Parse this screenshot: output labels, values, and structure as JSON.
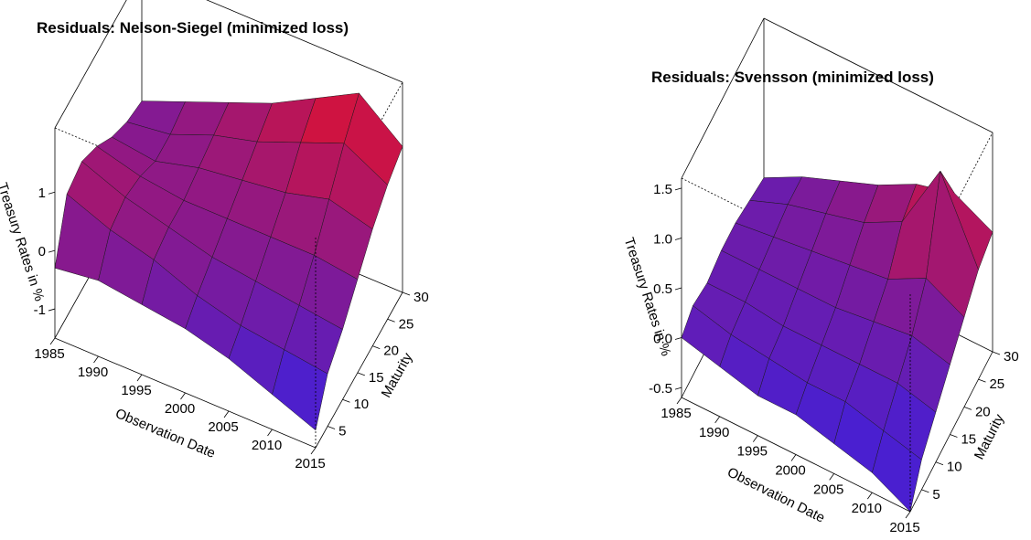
{
  "chart_data": [
    {
      "type": "surface",
      "title": "Residuals: Nelson-Siegel (minimized loss)",
      "xlabel": "Observation Date",
      "ylabel": "Maturity",
      "zlabel": "Treasury Rates in %",
      "x": [
        1985,
        1990,
        1995,
        2000,
        2005,
        2010,
        2015
      ],
      "y": [
        1,
        5,
        10,
        15,
        20,
        25,
        30
      ],
      "z": [
        [
          -0.3,
          0.6,
          0.7,
          0.5,
          0.2,
          0.0,
          -0.1
        ],
        [
          -0.2,
          0.3,
          0.4,
          0.3,
          0.1,
          0.1,
          0.2
        ],
        [
          -0.3,
          0.1,
          0.2,
          0.2,
          0.3,
          0.4,
          0.5
        ],
        [
          -0.4,
          -0.2,
          0.0,
          0.2,
          0.4,
          0.6,
          0.8
        ],
        [
          -0.6,
          -0.4,
          -0.1,
          0.2,
          0.5,
          0.9,
          1.2
        ],
        [
          -0.9,
          -0.5,
          -0.2,
          0.2,
          0.7,
          1.2,
          1.6
        ],
        [
          -1.2,
          -0.6,
          -0.3,
          0.1,
          0.5,
          0.8,
          1.0
        ]
      ],
      "xlim": [
        1985,
        2015
      ],
      "ylim": [
        1,
        30
      ],
      "zlim": [
        -1.5,
        2.1
      ],
      "xticks": [
        1985,
        1990,
        1995,
        2000,
        2005,
        2010,
        2015
      ],
      "yticks": [
        5,
        10,
        15,
        20,
        25,
        30
      ],
      "zticks": [
        -1,
        0,
        1
      ],
      "colors": [
        "#4a1fd0",
        "#ee1020"
      ]
    },
    {
      "type": "surface",
      "title": "Residuals: Svensson (minimized loss)",
      "xlabel": "Observation Date",
      "ylabel": "Maturity",
      "zlabel": "Treasury Rates in %",
      "x": [
        1985,
        1990,
        1995,
        2000,
        2005,
        2010,
        2015
      ],
      "y": [
        1,
        5,
        10,
        15,
        20,
        25,
        30
      ],
      "z": [
        [
          0.0,
          0.1,
          0.05,
          0.1,
          0.1,
          0.05,
          0.0
        ],
        [
          -0.1,
          0.0,
          0.05,
          0.1,
          0.15,
          0.2,
          0.2
        ],
        [
          -0.2,
          -0.05,
          0.0,
          0.1,
          0.2,
          0.3,
          0.35
        ],
        [
          -0.2,
          -0.1,
          0.0,
          0.1,
          0.25,
          0.4,
          0.5
        ],
        [
          -0.3,
          -0.1,
          0.0,
          0.15,
          0.3,
          0.6,
          0.7
        ],
        [
          -0.4,
          -0.2,
          0.0,
          0.2,
          0.5,
          1.3,
          0.8
        ],
        [
          -0.6,
          -0.3,
          -0.1,
          0.1,
          0.3,
          0.5,
          0.6
        ]
      ],
      "xlim": [
        1985,
        2015
      ],
      "ylim": [
        1,
        30
      ],
      "zlim": [
        -0.6,
        1.6
      ],
      "xticks": [
        1985,
        1990,
        1995,
        2000,
        2005,
        2010,
        2015
      ],
      "yticks": [
        5,
        10,
        15,
        20,
        25,
        30
      ],
      "zticks": [
        {
          "value": -0.5,
          "label": "-0.5"
        },
        {
          "value": 0,
          "label": "0.0"
        },
        0.5,
        {
          "value": 1,
          "label": "1.0"
        },
        1.5
      ],
      "colors": [
        "#4a1fd0",
        "#ee1020"
      ]
    }
  ]
}
